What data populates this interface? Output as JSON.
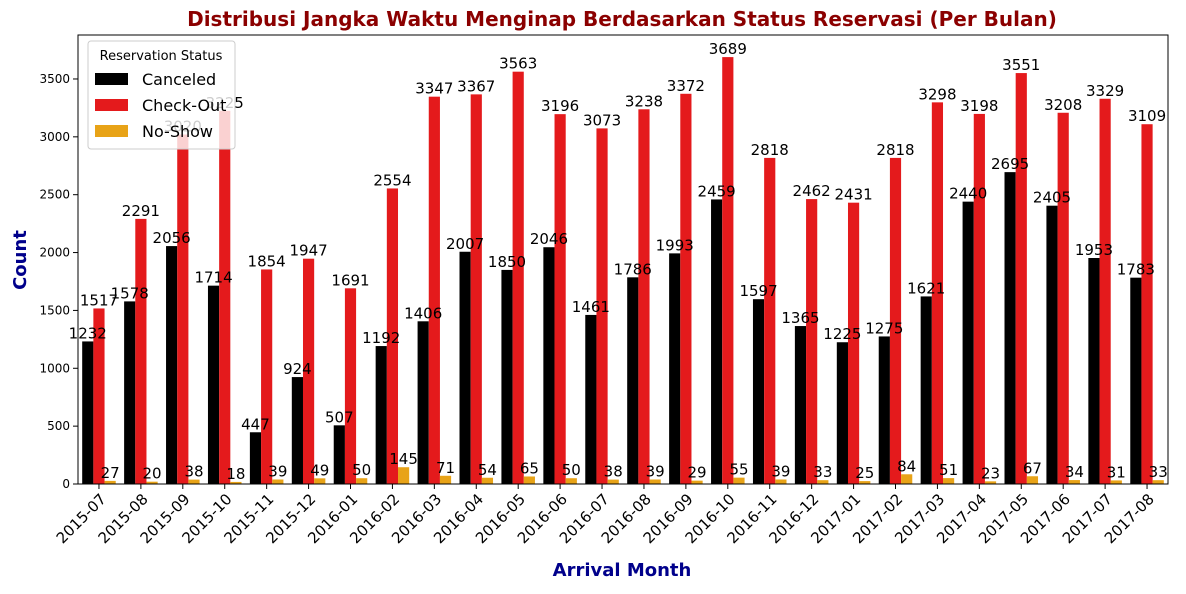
{
  "chart_data": {
    "type": "bar",
    "title": "Distribusi Jangka Waktu Menginap Berdasarkan Status Reservasi (Per Bulan)",
    "xlabel": "Arrival Month",
    "ylabel": "Count",
    "ylim": [
      0,
      3880
    ],
    "yticks": [
      0,
      500,
      1000,
      1500,
      2000,
      2500,
      3000,
      3500
    ],
    "grid": false,
    "legend": {
      "title": "Reservation Status",
      "placement": "top-left"
    },
    "categories": [
      "2015-07",
      "2015-08",
      "2015-09",
      "2015-10",
      "2015-11",
      "2015-12",
      "2016-01",
      "2016-02",
      "2016-03",
      "2016-04",
      "2016-05",
      "2016-06",
      "2016-07",
      "2016-08",
      "2016-09",
      "2016-10",
      "2016-11",
      "2016-12",
      "2017-01",
      "2017-02",
      "2017-03",
      "2017-04",
      "2017-05",
      "2017-06",
      "2017-07",
      "2017-08"
    ],
    "series": [
      {
        "name": "Canceled",
        "color": "#000000",
        "values": [
          1232,
          1578,
          2056,
          1714,
          447,
          924,
          507,
          1192,
          1406,
          2007,
          1850,
          2046,
          1461,
          1786,
          1993,
          2459,
          1597,
          1365,
          1225,
          1275,
          1621,
          2440,
          2695,
          2405,
          1953,
          1783
        ]
      },
      {
        "name": "Check-Out",
        "color": "#e41a1c",
        "values": [
          1517,
          2291,
          3020,
          3225,
          1854,
          1947,
          1691,
          2554,
          3347,
          3367,
          3563,
          3196,
          3073,
          3238,
          3372,
          3689,
          2818,
          2462,
          2431,
          2818,
          3298,
          3198,
          3551,
          3208,
          3329,
          3109
        ]
      },
      {
        "name": "No-Show",
        "color": "#e8a317",
        "values": [
          27,
          20,
          38,
          18,
          39,
          49,
          50,
          145,
          71,
          54,
          65,
          50,
          38,
          39,
          29,
          55,
          39,
          33,
          25,
          84,
          51,
          23,
          67,
          34,
          31,
          33
        ]
      }
    ]
  }
}
